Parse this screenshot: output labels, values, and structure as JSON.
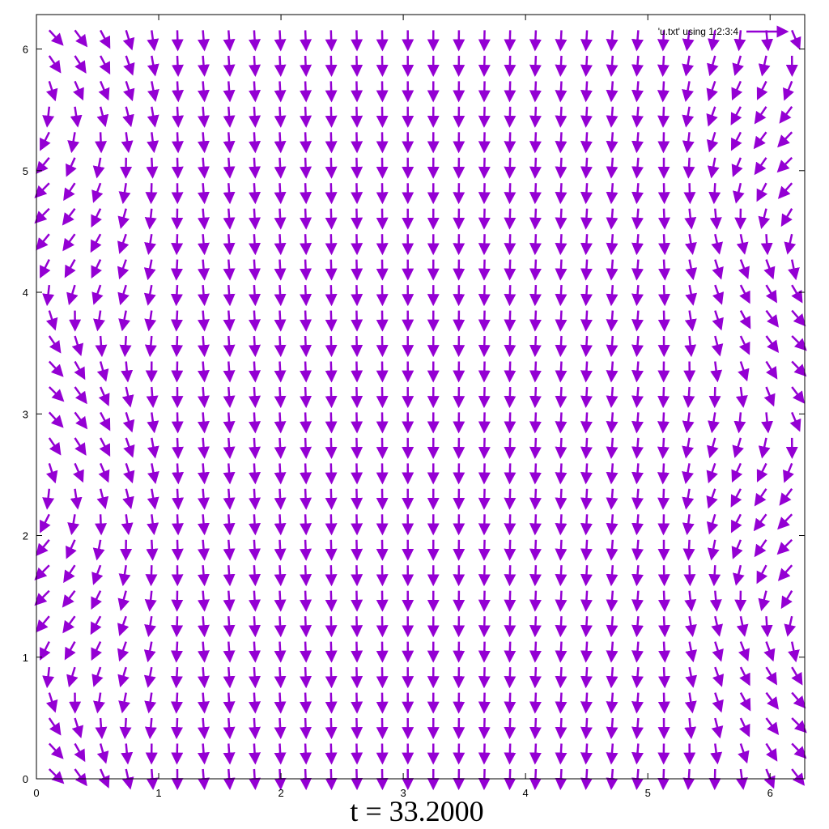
{
  "chart_data": {
    "type": "vector-field",
    "title": "",
    "xlabel": "",
    "ylabel": "",
    "xlim": [
      0,
      6.2832
    ],
    "ylim": [
      0,
      6.2832
    ],
    "x_ticks": [
      "0",
      "1",
      "2",
      "3",
      "4",
      "5",
      "6"
    ],
    "y_ticks": [
      "0",
      "1",
      "2",
      "3",
      "4",
      "5",
      "6"
    ],
    "legend": {
      "label": "'u.txt' using 1:2:3:4",
      "placement": "top-right"
    },
    "grid": false,
    "arrow_color": "#9400d3",
    "grid_points": 30,
    "caption": "t = 33.2000"
  }
}
